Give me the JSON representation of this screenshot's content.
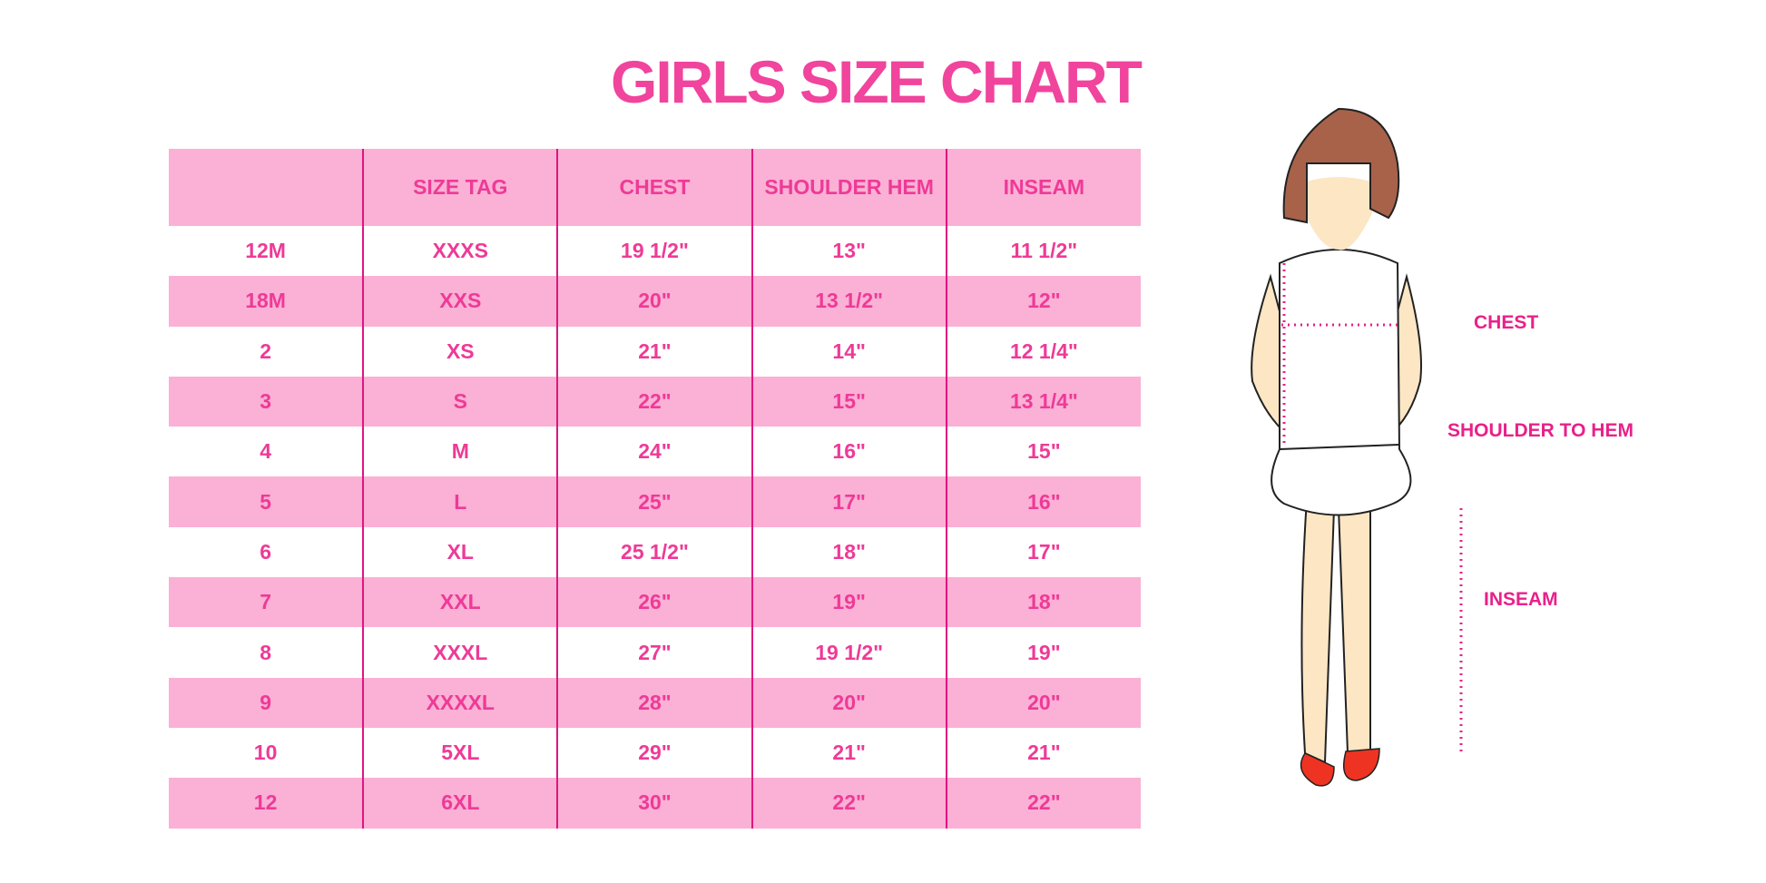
{
  "title": "GIRLS SIZE CHART",
  "table": {
    "headers": [
      "",
      "SIZE TAG",
      "CHEST",
      "SHOULDER HEM",
      "INSEAM"
    ],
    "rows": [
      [
        "12M",
        "XXXS",
        "19 1/2\"",
        "13\"",
        "11 1/2\""
      ],
      [
        "18M",
        "XXS",
        "20\"",
        "13 1/2\"",
        "12\""
      ],
      [
        "2",
        "XS",
        "21\"",
        "14\"",
        "12 1/4\""
      ],
      [
        "3",
        "S",
        "22\"",
        "15\"",
        "13 1/4\""
      ],
      [
        "4",
        "M",
        "24\"",
        "16\"",
        "15\""
      ],
      [
        "5",
        "L",
        "25\"",
        "17\"",
        "16\""
      ],
      [
        "6",
        "XL",
        "25 1/2\"",
        "18\"",
        "17\""
      ],
      [
        "7",
        "XXL",
        "26\"",
        "19\"",
        "18\""
      ],
      [
        "8",
        "XXXL",
        "27\"",
        "19 1/2\"",
        "19\""
      ],
      [
        "9",
        "XXXXL",
        "28\"",
        "20\"",
        "20\""
      ],
      [
        "10",
        "5XL",
        "29\"",
        "21\"",
        "21\""
      ],
      [
        "12",
        "6XL",
        "30\"",
        "22\"",
        "22\""
      ]
    ]
  },
  "figure": {
    "labels": {
      "chest": "CHEST",
      "shoulder_to_hem": "SHOULDER TO HEM",
      "inseam": "INSEAM"
    }
  },
  "colors": {
    "accent": "#ee3a97",
    "stripe": "#fbb0d5",
    "divider": "#e0157f"
  }
}
